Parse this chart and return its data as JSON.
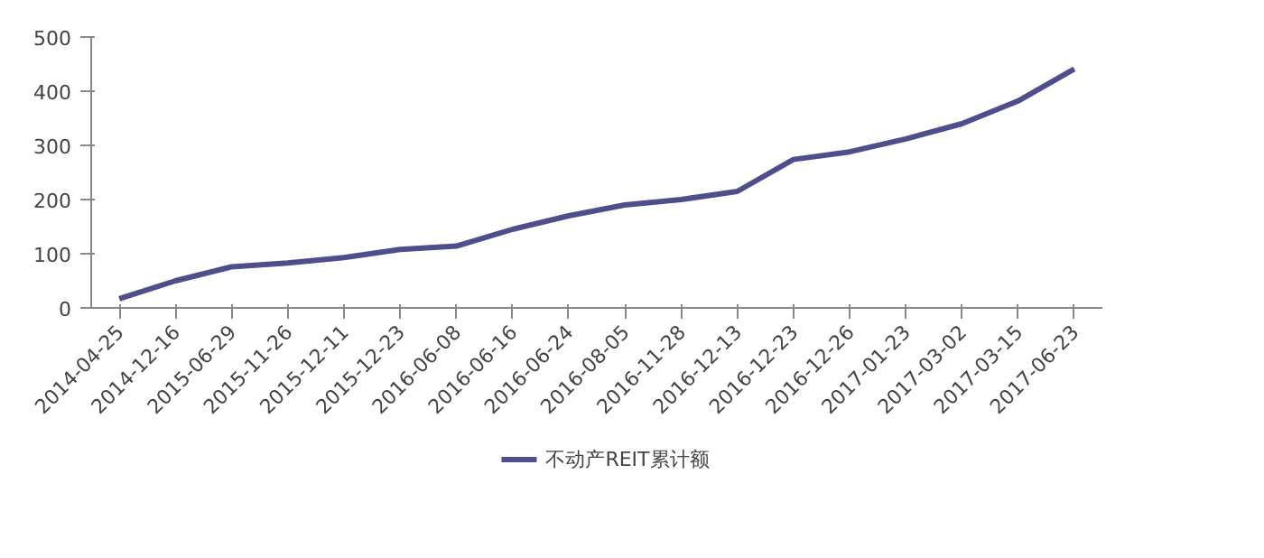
{
  "chart_data": {
    "type": "line",
    "categories": [
      "2014-04-25",
      "2014-12-16",
      "2015-06-29",
      "2015-11-26",
      "2015-12-11",
      "2015-12-23",
      "2016-06-08",
      "2016-06-16",
      "2016-06-24",
      "2016-08-05",
      "2016-11-28",
      "2016-12-13",
      "2016-12-23",
      "2016-12-26",
      "2017-01-23",
      "2017-03-02",
      "2017-03-15",
      "2017-06-23"
    ],
    "series": [
      {
        "name": "不动产REIT累计额",
        "color": "#4e4e8c",
        "values": [
          17,
          50,
          76,
          83,
          93,
          108,
          114,
          145,
          170,
          190,
          200,
          215,
          274,
          288,
          312,
          340,
          382,
          441
        ]
      }
    ],
    "ylim": [
      0,
      500
    ],
    "yticks": [
      0,
      100,
      200,
      300,
      400,
      500
    ],
    "grid": false,
    "legend": "bottom",
    "marker": "none",
    "line_style": "solid"
  }
}
